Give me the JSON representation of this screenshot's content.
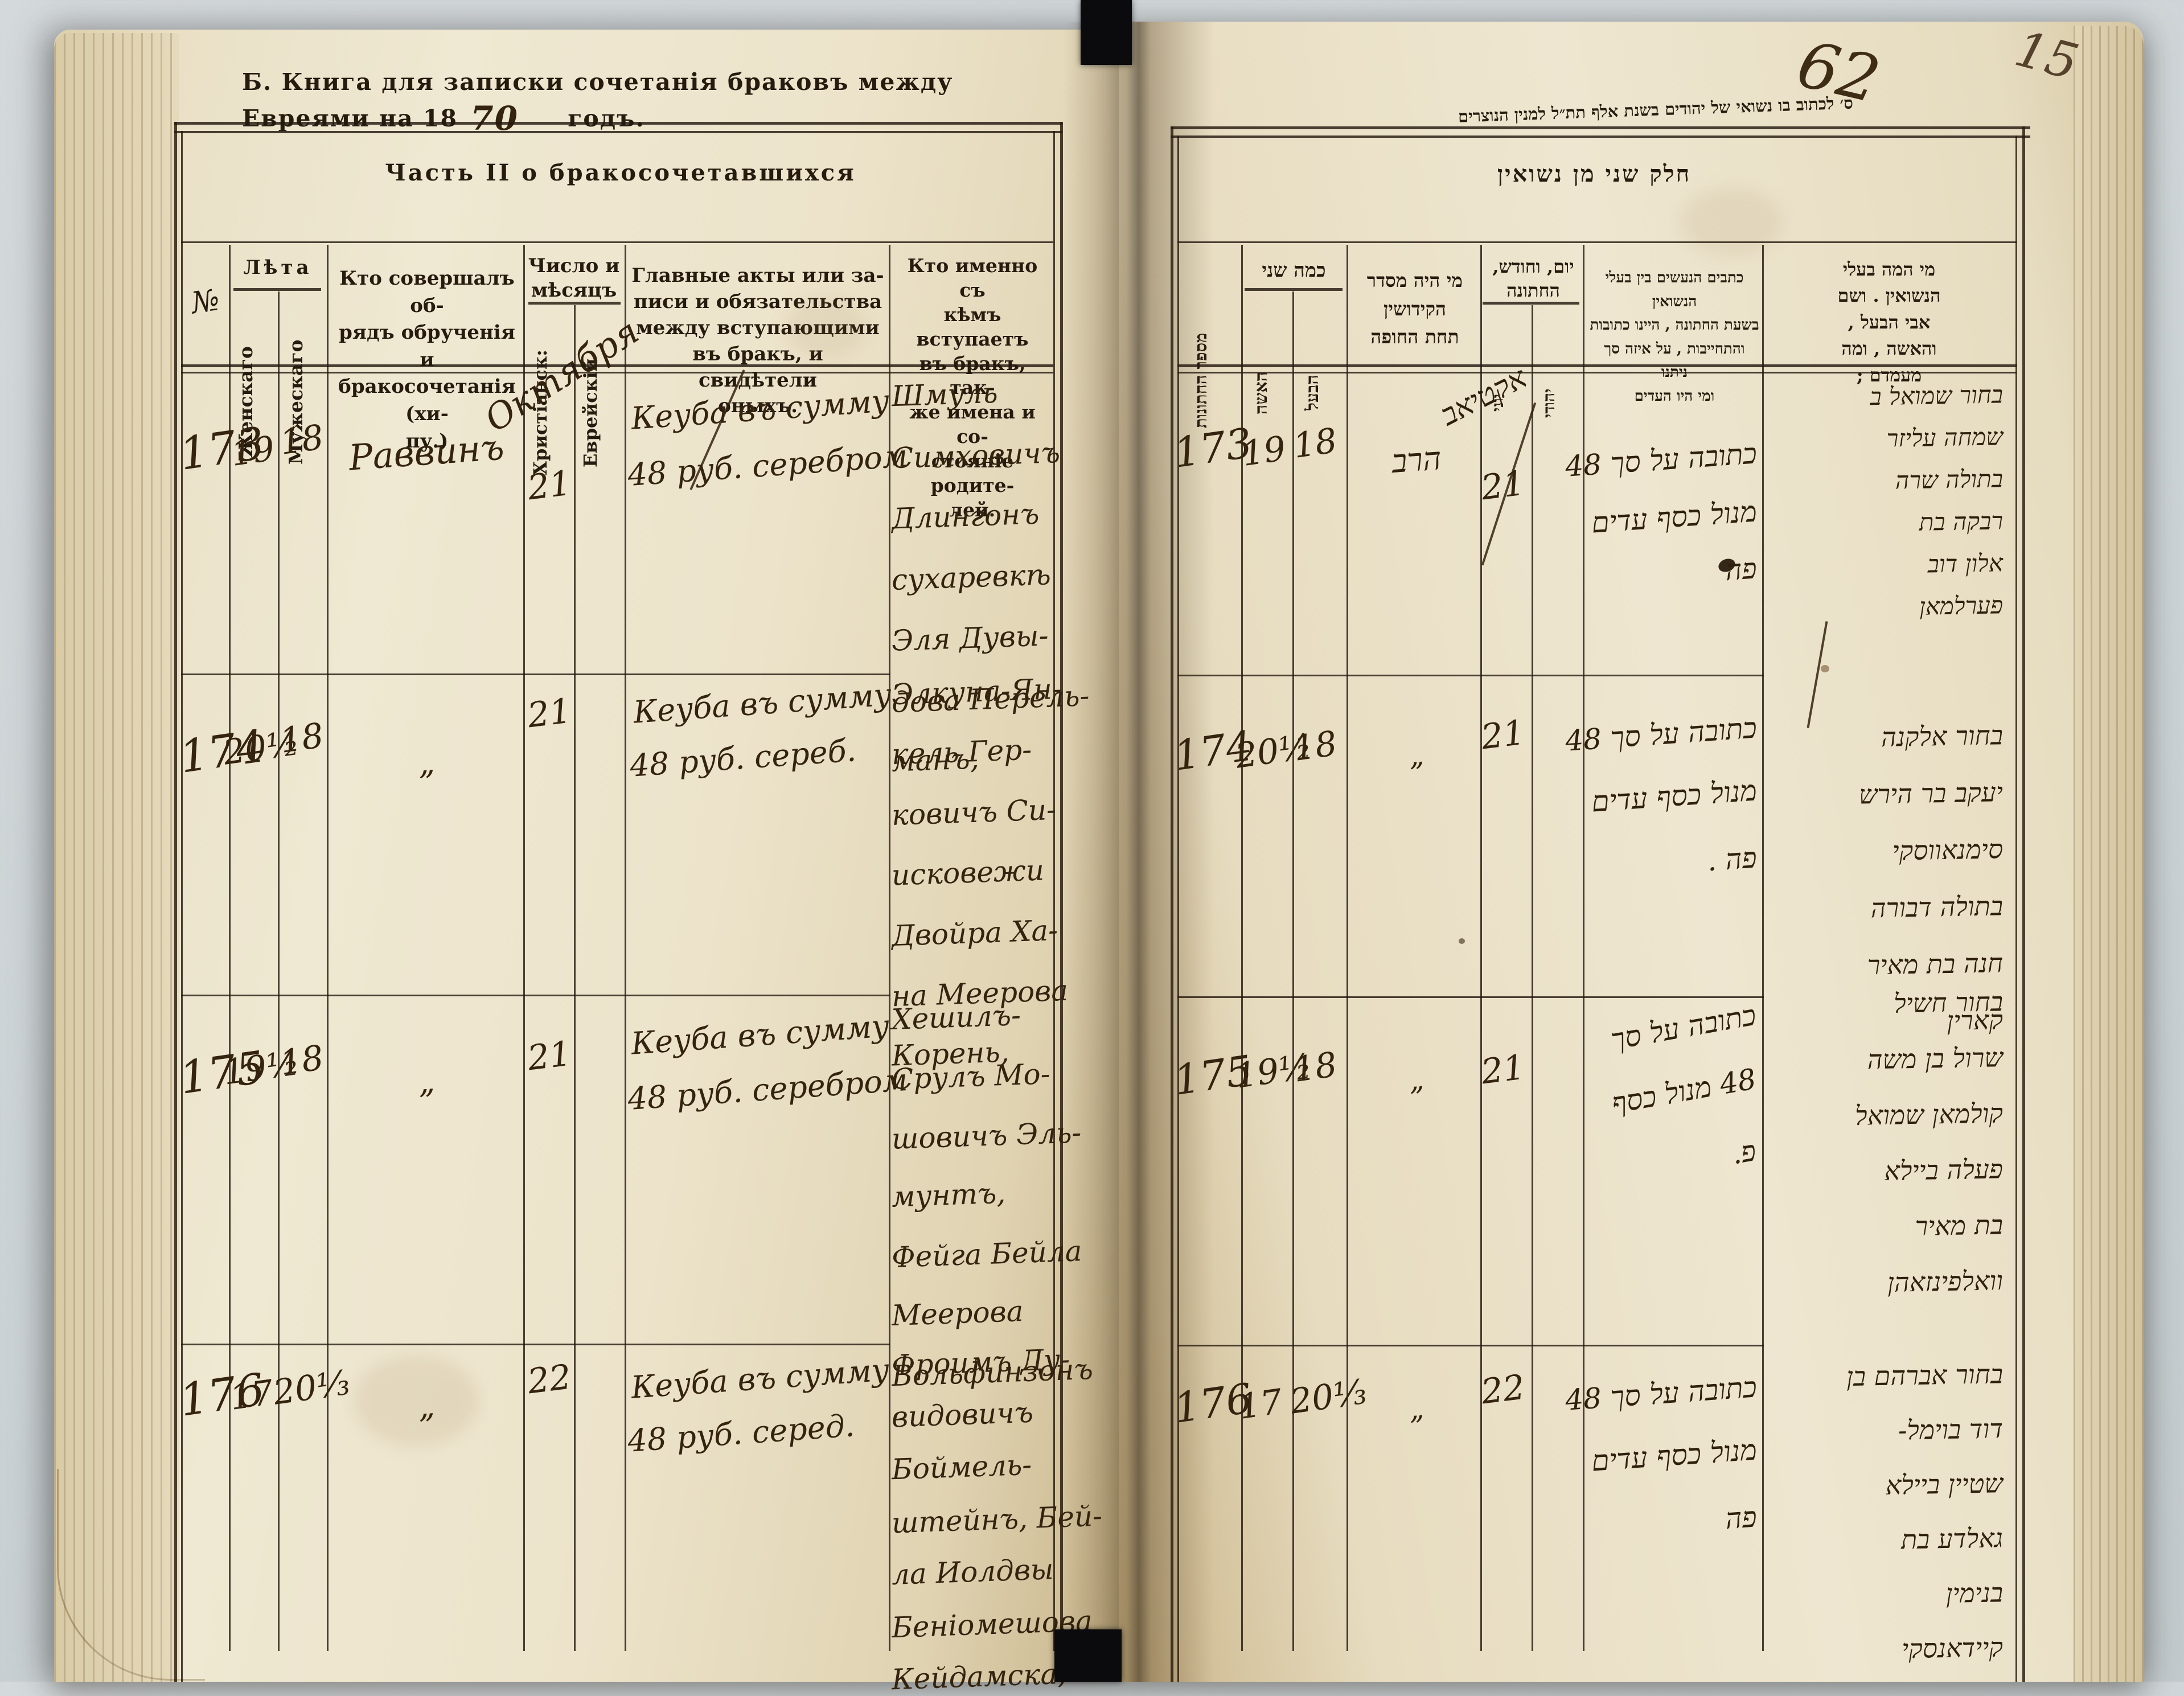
{
  "photo": {
    "backdrop_color": "#ccd3d6",
    "paper_color": "#ece3ca",
    "ink_color": "#2b1d10",
    "rule_color": "#241a10"
  },
  "annotations": {
    "folio_ink": "62",
    "folio_pencil": "15"
  },
  "left_page": {
    "title_prefix": "Б. Книга для записки сочетанія браковъ между Евреями на 18",
    "title_year": "70",
    "title_suffix": "годъ.",
    "caption": "Часть II о бракосочетавшихся",
    "headers": {
      "num": "№",
      "age_group": "Лѣта",
      "wife": "Женскаго",
      "husband": "Мужескаго",
      "officiant": "Кто совершалъ об-\nрядъ обрученія и\nбракосочетанія (хи-\nпу.)",
      "date_group": "Число и\nмѣсяцъ",
      "date_christian": "Христіанск:",
      "date_jewish": "Еврейскій",
      "acts": "Главные акты или за-\nписи и обязательства\nмежду вступающими\nвъ бракъ, и свидѣтели\nоныхъ.",
      "who": "Кто именно съ\nкѣмъ вступаетъ\nвъ бракъ, так-\nже имена и со-\nстояніе родите-\nлей."
    },
    "month_script": "Октября",
    "rows": [
      {
        "num": "173",
        "wife_age": "19",
        "husband_age": "18",
        "officiant": "Раввинъ",
        "date": "21",
        "ketuba": [
          "Кеуба въ сумму",
          "48 руб. серебром"
        ],
        "names": [
          "Шмуль",
          "Симховичъ",
          "Длингонъ",
          "сухаревкѣ",
          "Эля Дувы-",
          "дова Перель-",
          "манъ,"
        ]
      },
      {
        "num": "174",
        "wife_age": "20½",
        "husband_age": "18",
        "officiant": "„",
        "date": "21",
        "ketuba": [
          "Кеуба въ сумму",
          "48 руб. сереб."
        ],
        "names": [
          "Элкуна-Ян-",
          "кель Гер-",
          "ковичъ Си-",
          "исковежи",
          "Двойра Ха-",
          "на Меерова",
          "Корень,"
        ]
      },
      {
        "num": "175",
        "wife_age": "19½",
        "husband_age": "18",
        "officiant": "„",
        "date": "21",
        "ketuba": [
          "Кеуба въ сумму",
          "48 руб. серебром"
        ],
        "names": [
          "Хешилъ-",
          "Срулъ Мо-",
          "шовичъ Эль-",
          "мунтъ,",
          "Фейга Бейла",
          "Меерова",
          "Вольфинзонъ"
        ]
      },
      {
        "num": "176",
        "wife_age": "17",
        "husband_age": "20⅓",
        "officiant": "„",
        "date": "22",
        "ketuba": [
          "Кеуба въ сумму",
          "48 руб. серед."
        ],
        "names": [
          "Фроимъ Ду-",
          "видовичъ",
          "Боймель-",
          "штейнъ, Бей-",
          "ла Иолдвы",
          "Беніомешова",
          "Кейдамска,"
        ]
      }
    ]
  },
  "right_page": {
    "title": "ס׳ לכתוב בו נשואי של יהודים בשנת אלף תת״ל למנין הנוצרים",
    "caption": "חלק שני מן נשואין",
    "headers": {
      "num": "מספר החתונות",
      "age_group": "כמה שני",
      "wife": "האשה",
      "husband": "הבעל",
      "officiant": "מי היה מסדר\nהקידושין\nתחת החופה",
      "date_group": "יום, וחודש,\nהחתונה",
      "date_julian": "יוני",
      "date_jewish": "יהודי",
      "acts": "כתבים הנעשים בין בעלי הנשואין\nבשעת החתונה , היינו כתובות\nוהתחייבות , על איזה סך ניתנו\nומי היו העדים",
      "who": "מי המה בעלי\nהנשואין . ושם\nאבי הבעל ,\nוהאשה , ומה\nמעמדם ;"
    },
    "month_script": "אקטיאב",
    "rows": [
      {
        "num": "173",
        "wife_age": "19",
        "husband_age": "18",
        "officiant": "הרב",
        "date": "21",
        "ketuba": [
          "כתובה על סך 48",
          "מנול כסף עדים",
          "פה"
        ],
        "names": [
          "בחור שמואל ב",
          "שמחה עליזר",
          "בתולה שרה",
          "רבקה בת",
          "אלון דוב",
          "פערלמאן"
        ]
      },
      {
        "num": "174",
        "wife_age": "20½",
        "husband_age": "18",
        "officiant": "„",
        "date": "21",
        "ketuba": [
          "כתובה על סך 48",
          "מנול כסף עדים",
          "פה ."
        ],
        "names": [
          "בחור אלקנה",
          "יעקב בר הירש",
          "סימנאווסקי",
          "בתולה דבורה",
          "חנה בת מאיר",
          "קארין"
        ]
      },
      {
        "num": "175",
        "wife_age": "19½",
        "husband_age": "18",
        "officiant": "„",
        "date": "21",
        "ketuba": [
          "כתובה על סך",
          "48 מנול כסף",
          "פ."
        ],
        "names": [
          "בחור חשיל",
          "שרול בן משה",
          "קולמאן שמואל",
          "פעלה ביילא",
          "בת מאיר",
          "וואלפינזאהן"
        ]
      },
      {
        "num": "176",
        "wife_age": "17",
        "husband_age": "20⅓",
        "officiant": "„",
        "date": "22",
        "ketuba": [
          "כתובה על סך 48",
          "מנול כסף עדים",
          "פה"
        ],
        "names": [
          "בחור אברהם בן",
          "דוד בוימל-",
          "שטיין ביילא",
          "גאלדע בת",
          "בנימין",
          "קיידאנסקי"
        ]
      }
    ]
  }
}
